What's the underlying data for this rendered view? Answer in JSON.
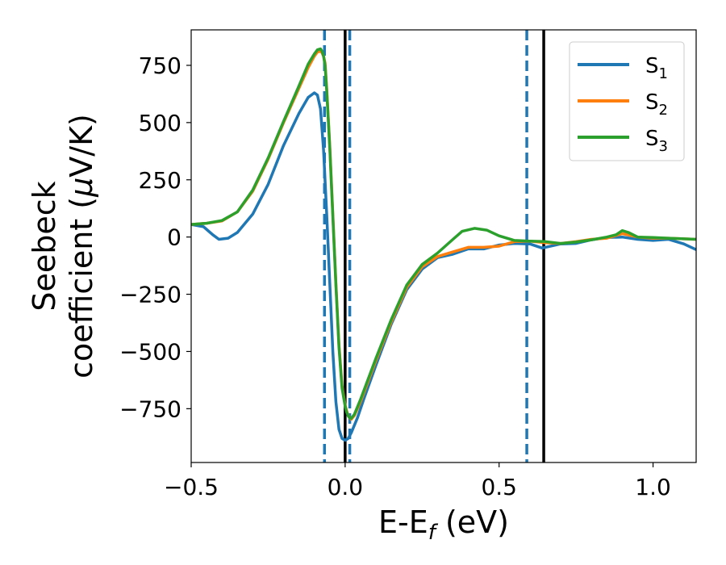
{
  "chart_data": {
    "type": "line",
    "xlabel": "E-E",
    "xlabel_sub": "f",
    "xlabel_unit": " (eV)",
    "ylabel_line1": "Seebeck",
    "ylabel_line2": "coefficient  (",
    "ylabel_mu": "μ",
    "ylabel_unit_end": "V/K)",
    "xlim": [
      -0.5,
      1.14
    ],
    "ylim": [
      -985,
      905
    ],
    "xticks": [
      {
        "value": -0.5,
        "label": "−0.5"
      },
      {
        "value": 0.0,
        "label": "0.0"
      },
      {
        "value": 0.5,
        "label": "0.5"
      },
      {
        "value": 1.0,
        "label": "1.0"
      }
    ],
    "yticks": [
      {
        "value": 750,
        "label": "750"
      },
      {
        "value": 500,
        "label": "500"
      },
      {
        "value": 250,
        "label": "250"
      },
      {
        "value": 0,
        "label": "0"
      },
      {
        "value": -250,
        "label": "−250"
      },
      {
        "value": -500,
        "label": "−500"
      },
      {
        "value": -750,
        "label": "−750"
      }
    ],
    "legend_position": "top-right",
    "vlines": [
      {
        "x": -0.067,
        "style": "dashed",
        "color": "#1f77b4"
      },
      {
        "x": 0.0,
        "style": "solid",
        "color": "#000000"
      },
      {
        "x": 0.015,
        "style": "dashed",
        "color": "#1f77b4"
      },
      {
        "x": 0.59,
        "style": "dashed",
        "color": "#1f77b4"
      },
      {
        "x": 0.645,
        "style": "solid",
        "color": "#000000"
      }
    ],
    "series": [
      {
        "name": "S",
        "sub": "1",
        "color": "#1f77b4",
        "points": [
          [
            -0.5,
            55
          ],
          [
            -0.46,
            45
          ],
          [
            -0.43,
            10
          ],
          [
            -0.41,
            -10
          ],
          [
            -0.38,
            -5
          ],
          [
            -0.35,
            20
          ],
          [
            -0.3,
            100
          ],
          [
            -0.25,
            230
          ],
          [
            -0.2,
            400
          ],
          [
            -0.15,
            540
          ],
          [
            -0.12,
            610
          ],
          [
            -0.1,
            630
          ],
          [
            -0.09,
            620
          ],
          [
            -0.08,
            560
          ],
          [
            -0.07,
            380
          ],
          [
            -0.06,
            100
          ],
          [
            -0.05,
            -200
          ],
          [
            -0.04,
            -500
          ],
          [
            -0.03,
            -720
          ],
          [
            -0.02,
            -840
          ],
          [
            -0.01,
            -880
          ],
          [
            0.0,
            -888
          ],
          [
            0.01,
            -880
          ],
          [
            0.02,
            -855
          ],
          [
            0.04,
            -790
          ],
          [
            0.06,
            -710
          ],
          [
            0.1,
            -560
          ],
          [
            0.15,
            -380
          ],
          [
            0.2,
            -230
          ],
          [
            0.25,
            -140
          ],
          [
            0.3,
            -90
          ],
          [
            0.35,
            -75
          ],
          [
            0.4,
            -52
          ],
          [
            0.45,
            -52
          ],
          [
            0.5,
            -35
          ],
          [
            0.55,
            -28
          ],
          [
            0.6,
            -30
          ],
          [
            0.64,
            -48
          ],
          [
            0.7,
            -30
          ],
          [
            0.75,
            -28
          ],
          [
            0.8,
            -12
          ],
          [
            0.85,
            -2
          ],
          [
            0.9,
            0
          ],
          [
            0.95,
            -10
          ],
          [
            1.0,
            -15
          ],
          [
            1.05,
            -10
          ],
          [
            1.1,
            -30
          ],
          [
            1.14,
            -55
          ]
        ]
      },
      {
        "name": "S",
        "sub": "2",
        "color": "#ff7f0e",
        "points": [
          [
            -0.5,
            55
          ],
          [
            -0.45,
            60
          ],
          [
            -0.4,
            70
          ],
          [
            -0.35,
            110
          ],
          [
            -0.3,
            200
          ],
          [
            -0.25,
            340
          ],
          [
            -0.2,
            500
          ],
          [
            -0.15,
            650
          ],
          [
            -0.12,
            740
          ],
          [
            -0.1,
            790
          ],
          [
            -0.09,
            808
          ],
          [
            -0.08,
            812
          ],
          [
            -0.075,
            805
          ],
          [
            -0.07,
            790
          ],
          [
            -0.065,
            760
          ],
          [
            -0.06,
            650
          ],
          [
            -0.05,
            400
          ],
          [
            -0.04,
            100
          ],
          [
            -0.03,
            -200
          ],
          [
            -0.02,
            -470
          ],
          [
            -0.01,
            -650
          ],
          [
            0.0,
            -735
          ],
          [
            0.005,
            -760
          ],
          [
            0.01,
            -780
          ],
          [
            0.015,
            -790
          ],
          [
            0.02,
            -796
          ],
          [
            0.03,
            -780
          ],
          [
            0.05,
            -720
          ],
          [
            0.1,
            -540
          ],
          [
            0.15,
            -370
          ],
          [
            0.2,
            -220
          ],
          [
            0.25,
            -130
          ],
          [
            0.3,
            -85
          ],
          [
            0.35,
            -65
          ],
          [
            0.4,
            -45
          ],
          [
            0.45,
            -45
          ],
          [
            0.5,
            -40
          ],
          [
            0.55,
            -20
          ],
          [
            0.6,
            -18
          ],
          [
            0.65,
            -25
          ],
          [
            0.7,
            -28
          ],
          [
            0.75,
            -20
          ],
          [
            0.8,
            -10
          ],
          [
            0.85,
            -5
          ],
          [
            0.9,
            15
          ],
          [
            0.95,
            0
          ],
          [
            1.0,
            -5
          ],
          [
            1.05,
            -5
          ],
          [
            1.1,
            -8
          ],
          [
            1.14,
            -10
          ]
        ]
      },
      {
        "name": "S",
        "sub": "3",
        "color": "#2ca02c",
        "points": [
          [
            -0.5,
            55
          ],
          [
            -0.45,
            60
          ],
          [
            -0.4,
            72
          ],
          [
            -0.35,
            110
          ],
          [
            -0.3,
            205
          ],
          [
            -0.25,
            345
          ],
          [
            -0.2,
            505
          ],
          [
            -0.15,
            660
          ],
          [
            -0.12,
            755
          ],
          [
            -0.1,
            800
          ],
          [
            -0.09,
            818
          ],
          [
            -0.08,
            822
          ],
          [
            -0.075,
            812
          ],
          [
            -0.07,
            790
          ],
          [
            -0.065,
            750
          ],
          [
            -0.06,
            640
          ],
          [
            -0.05,
            390
          ],
          [
            -0.04,
            90
          ],
          [
            -0.03,
            -210
          ],
          [
            -0.02,
            -480
          ],
          [
            -0.01,
            -660
          ],
          [
            0.0,
            -740
          ],
          [
            0.005,
            -765
          ],
          [
            0.01,
            -782
          ],
          [
            0.015,
            -790
          ],
          [
            0.02,
            -792
          ],
          [
            0.03,
            -775
          ],
          [
            0.05,
            -710
          ],
          [
            0.1,
            -530
          ],
          [
            0.15,
            -360
          ],
          [
            0.2,
            -210
          ],
          [
            0.25,
            -120
          ],
          [
            0.3,
            -70
          ],
          [
            0.35,
            -10
          ],
          [
            0.38,
            25
          ],
          [
            0.42,
            38
          ],
          [
            0.46,
            30
          ],
          [
            0.5,
            5
          ],
          [
            0.55,
            -15
          ],
          [
            0.6,
            -18
          ],
          [
            0.65,
            -20
          ],
          [
            0.7,
            -28
          ],
          [
            0.75,
            -22
          ],
          [
            0.8,
            -12
          ],
          [
            0.85,
            0
          ],
          [
            0.88,
            10
          ],
          [
            0.9,
            28
          ],
          [
            0.92,
            20
          ],
          [
            0.95,
            0
          ],
          [
            1.0,
            -2
          ],
          [
            1.05,
            -5
          ],
          [
            1.1,
            -8
          ],
          [
            1.14,
            -10
          ]
        ]
      }
    ]
  }
}
